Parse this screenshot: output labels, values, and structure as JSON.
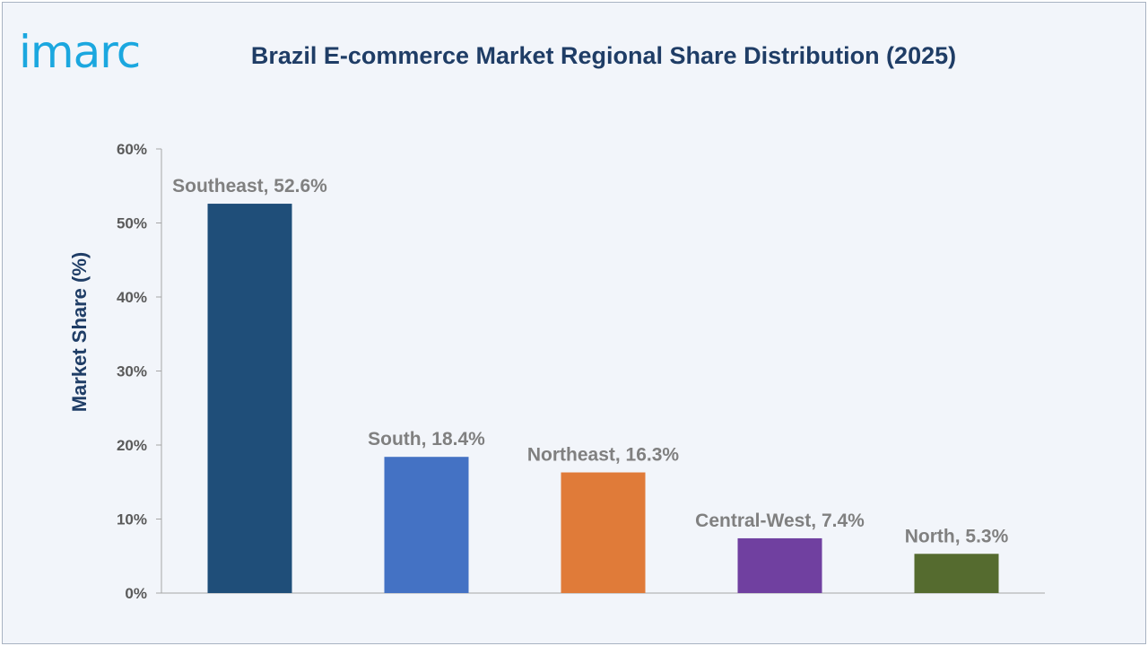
{
  "brand": {
    "logo_text": "imarc"
  },
  "chart_data": {
    "type": "bar",
    "title": "Brazil E-commerce Market Regional Share Distribution (2025)",
    "xlabel": "",
    "ylabel": "Market Share (%)",
    "ylim": [
      0,
      60
    ],
    "yticks": [
      0,
      10,
      20,
      30,
      40,
      50,
      60
    ],
    "ytick_labels": [
      "0%",
      "10%",
      "20%",
      "30%",
      "40%",
      "50%",
      "60%"
    ],
    "categories": [
      "Southeast",
      "South",
      "Northeast",
      "Central-West",
      "North"
    ],
    "values": [
      52.6,
      18.4,
      16.3,
      7.4,
      5.3
    ],
    "data_labels": [
      "Southeast, 52.6%",
      "South, 18.4%",
      "Northeast, 16.3%",
      "Central-West, 7.4%",
      "North, 5.3%"
    ],
    "colors": [
      "#1f4e79",
      "#4472c4",
      "#e07b39",
      "#7040a0",
      "#556b2f"
    ],
    "grid": false,
    "legend": "none"
  }
}
